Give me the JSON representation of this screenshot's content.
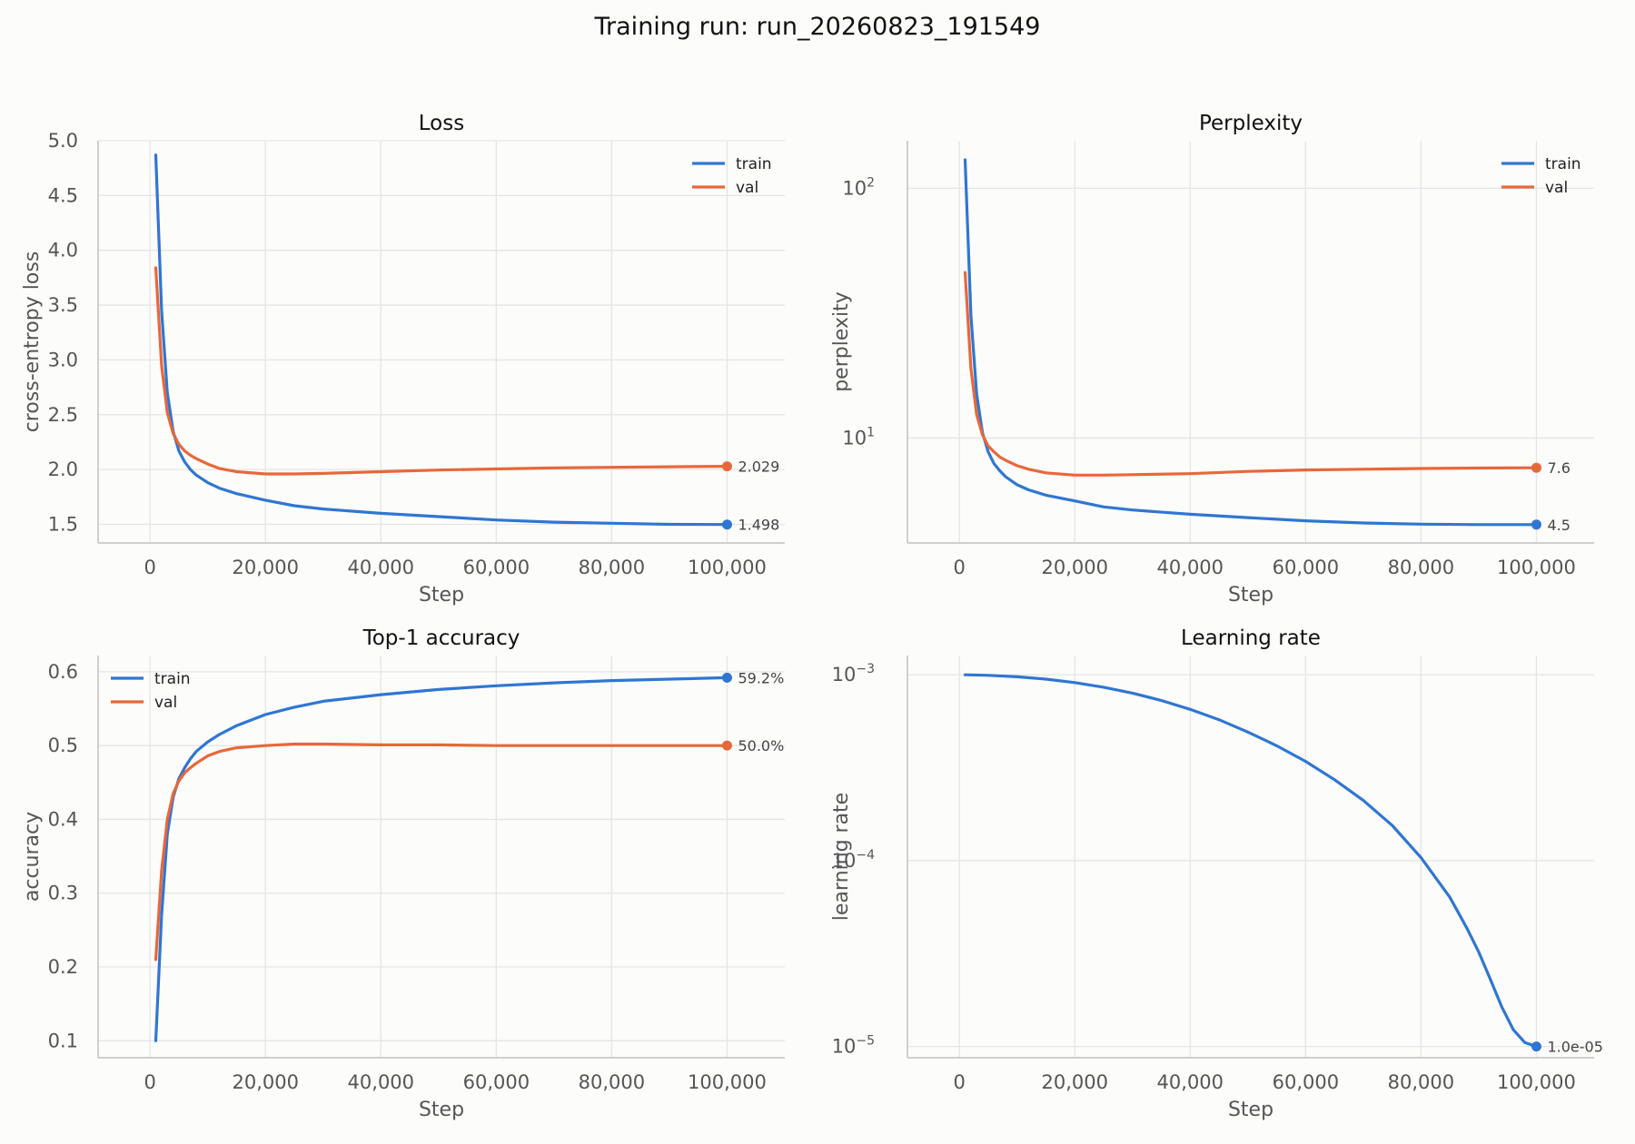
{
  "suptitle": "Training run: run_20260823_191549",
  "colors": {
    "train": "#2f76d2",
    "val": "#e8673a"
  },
  "chart_data": [
    {
      "type": "line",
      "title": "Loss",
      "xlabel": "Step",
      "ylabel": "cross-entropy loss",
      "xlim": [
        -9000,
        110000
      ],
      "ylim": [
        1.33,
        5.0
      ],
      "yscale": "linear",
      "xticks": [
        0,
        20000,
        40000,
        60000,
        80000,
        100000
      ],
      "xtick_labels": [
        "0",
        "20,000",
        "40,000",
        "60,000",
        "80,000",
        "100,000"
      ],
      "yticks": [
        1.5,
        2.0,
        2.5,
        3.0,
        3.5,
        4.0,
        4.5,
        5.0
      ],
      "ytick_labels": [
        "1.5",
        "2.0",
        "2.5",
        "3.0",
        "3.5",
        "4.0",
        "4.5",
        "5.0"
      ],
      "grid": true,
      "legend": "top-right",
      "series": [
        {
          "name": "train",
          "color": "train",
          "x": [
            1000,
            2000,
            3000,
            4000,
            5000,
            6000,
            7000,
            8000,
            10000,
            12000,
            15000,
            20000,
            25000,
            30000,
            40000,
            50000,
            60000,
            70000,
            80000,
            90000,
            100000
          ],
          "y": [
            4.87,
            3.45,
            2.7,
            2.35,
            2.17,
            2.07,
            2.0,
            1.95,
            1.88,
            1.83,
            1.78,
            1.72,
            1.67,
            1.64,
            1.6,
            1.57,
            1.54,
            1.52,
            1.51,
            1.5,
            1.498
          ],
          "end_label": "1.498"
        },
        {
          "name": "val",
          "color": "val",
          "x": [
            1000,
            2000,
            3000,
            4000,
            5000,
            6000,
            7000,
            8000,
            10000,
            12000,
            15000,
            20000,
            25000,
            30000,
            40000,
            50000,
            60000,
            70000,
            80000,
            90000,
            100000
          ],
          "y": [
            3.84,
            2.95,
            2.52,
            2.33,
            2.23,
            2.17,
            2.13,
            2.1,
            2.05,
            2.01,
            1.98,
            1.96,
            1.96,
            1.965,
            1.98,
            1.995,
            2.005,
            2.015,
            2.02,
            2.025,
            2.029
          ],
          "end_label": "2.029"
        }
      ]
    },
    {
      "type": "line",
      "title": "Perplexity",
      "xlabel": "Step",
      "ylabel": "perplexity",
      "xlim": [
        -9000,
        110000
      ],
      "ylim": [
        3.8,
        155
      ],
      "yscale": "log",
      "xticks": [
        0,
        20000,
        40000,
        60000,
        80000,
        100000
      ],
      "xtick_labels": [
        "0",
        "20,000",
        "40,000",
        "60,000",
        "80,000",
        "100,000"
      ],
      "yticks": [
        10,
        100
      ],
      "ytick_labels": [
        {
          "base": "10",
          "exp": "1"
        },
        {
          "base": "10",
          "exp": "2"
        }
      ],
      "grid": true,
      "legend": "top-right",
      "series": [
        {
          "name": "train",
          "color": "train",
          "x": [
            1000,
            2000,
            3000,
            4000,
            5000,
            6000,
            7000,
            8000,
            10000,
            12000,
            15000,
            20000,
            25000,
            30000,
            40000,
            50000,
            60000,
            70000,
            80000,
            90000,
            100000
          ],
          "y": [
            130,
            31,
            15,
            10.5,
            8.8,
            7.9,
            7.4,
            7.0,
            6.5,
            6.2,
            5.9,
            5.6,
            5.3,
            5.15,
            4.95,
            4.8,
            4.66,
            4.57,
            4.52,
            4.5,
            4.5
          ],
          "end_label": "4.5"
        },
        {
          "name": "val",
          "color": "val",
          "x": [
            1000,
            2000,
            3000,
            4000,
            5000,
            6000,
            7000,
            8000,
            10000,
            12000,
            15000,
            20000,
            25000,
            30000,
            40000,
            50000,
            60000,
            70000,
            80000,
            90000,
            100000
          ],
          "y": [
            46,
            19,
            12.4,
            10.3,
            9.3,
            8.8,
            8.4,
            8.15,
            7.75,
            7.5,
            7.25,
            7.1,
            7.1,
            7.13,
            7.2,
            7.35,
            7.45,
            7.5,
            7.55,
            7.58,
            7.6
          ],
          "end_label": "7.6"
        }
      ]
    },
    {
      "type": "line",
      "title": "Top-1 accuracy",
      "xlabel": "Step",
      "ylabel": "accuracy",
      "xlim": [
        -9000,
        110000
      ],
      "ylim": [
        0.077,
        0.622
      ],
      "yscale": "linear",
      "xticks": [
        0,
        20000,
        40000,
        60000,
        80000,
        100000
      ],
      "xtick_labels": [
        "0",
        "20,000",
        "40,000",
        "60,000",
        "80,000",
        "100,000"
      ],
      "yticks": [
        0.1,
        0.2,
        0.3,
        0.4,
        0.5,
        0.6
      ],
      "ytick_labels": [
        "0.1",
        "0.2",
        "0.3",
        "0.4",
        "0.5",
        "0.6"
      ],
      "grid": true,
      "legend": "top-left",
      "series": [
        {
          "name": "train",
          "color": "train",
          "x": [
            1000,
            2000,
            3000,
            4000,
            5000,
            6000,
            7000,
            8000,
            10000,
            12000,
            15000,
            20000,
            25000,
            30000,
            40000,
            50000,
            60000,
            70000,
            80000,
            90000,
            100000
          ],
          "y": [
            0.1,
            0.27,
            0.38,
            0.43,
            0.455,
            0.47,
            0.482,
            0.492,
            0.505,
            0.515,
            0.527,
            0.542,
            0.552,
            0.56,
            0.569,
            0.576,
            0.581,
            0.585,
            0.588,
            0.59,
            0.592
          ],
          "end_label": "59.2%"
        },
        {
          "name": "val",
          "color": "val",
          "x": [
            1000,
            2000,
            3000,
            4000,
            5000,
            6000,
            7000,
            8000,
            10000,
            12000,
            15000,
            20000,
            25000,
            30000,
            40000,
            50000,
            60000,
            70000,
            80000,
            90000,
            100000
          ],
          "y": [
            0.21,
            0.33,
            0.4,
            0.435,
            0.452,
            0.463,
            0.47,
            0.476,
            0.486,
            0.492,
            0.497,
            0.5,
            0.502,
            0.502,
            0.501,
            0.501,
            0.5,
            0.5,
            0.5,
            0.5,
            0.5
          ],
          "end_label": "50.0%"
        }
      ]
    },
    {
      "type": "line",
      "title": "Learning rate",
      "xlabel": "Step",
      "ylabel": "learning rate",
      "xlim": [
        -9000,
        110000
      ],
      "ylim": [
        8.7e-06,
        0.00127
      ],
      "yscale": "log",
      "xticks": [
        0,
        20000,
        40000,
        60000,
        80000,
        100000
      ],
      "xtick_labels": [
        "0",
        "20,000",
        "40,000",
        "60,000",
        "80,000",
        "100,000"
      ],
      "yticks": [
        1e-05,
        0.0001,
        0.001
      ],
      "ytick_labels": [
        {
          "base": "10",
          "exp": "−5"
        },
        {
          "base": "10",
          "exp": "−4"
        },
        {
          "base": "10",
          "exp": "−3"
        }
      ],
      "grid": true,
      "legend": "none",
      "series": [
        {
          "name": "",
          "color": "train",
          "x": [
            1000,
            5000,
            10000,
            15000,
            20000,
            25000,
            30000,
            35000,
            40000,
            45000,
            50000,
            55000,
            60000,
            65000,
            70000,
            75000,
            80000,
            85000,
            88000,
            90000,
            92000,
            94000,
            96000,
            98000,
            100000
          ],
          "y": [
            0.001,
            0.000994,
            0.000976,
            0.000948,
            0.000908,
            0.000858,
            0.000797,
            0.000728,
            0.000652,
            0.000573,
            0.000492,
            0.000415,
            0.000342,
            0.000273,
            0.000211,
            0.000155,
            0.0001038,
            6.35e-05,
            4.31e-05,
            3.23e-05,
            2.31e-05,
            1.63e-05,
            1.23e-05,
            1.05e-05,
            1e-05
          ],
          "end_label": "1.0e-05"
        }
      ]
    }
  ]
}
